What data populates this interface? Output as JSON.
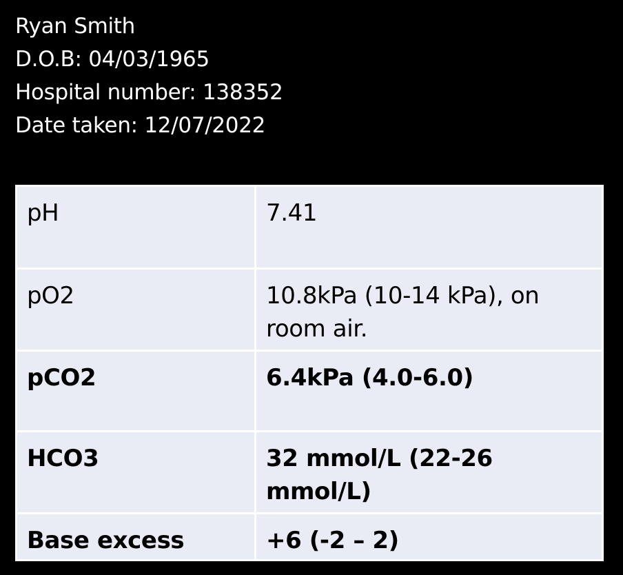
{
  "patient": {
    "name": "Ryan Smith",
    "dob": "D.O.B: 04/03/1965",
    "hospital_number": "Hospital number: 138352",
    "date_taken": "Date taken: 12/07/2022"
  },
  "results": [
    {
      "parameter": "pH",
      "value": "7.41",
      "bold": false
    },
    {
      "parameter": "pO2",
      "value": "10.8kPa (10-14 kPa), on room air.",
      "bold": false
    },
    {
      "parameter": "pCO2",
      "value": "6.4kPa (4.0-6.0)",
      "bold": true
    },
    {
      "parameter": "HCO3",
      "value": "32 mmol/L (22-26 mmol/L)",
      "bold": true
    },
    {
      "parameter": "Base excess",
      "value": "+6 (-2 – 2)",
      "bold": true
    }
  ],
  "colors": {
    "background": "#000000",
    "table_fill": "#e9ebf5",
    "grid_lines": "#ffffff"
  }
}
